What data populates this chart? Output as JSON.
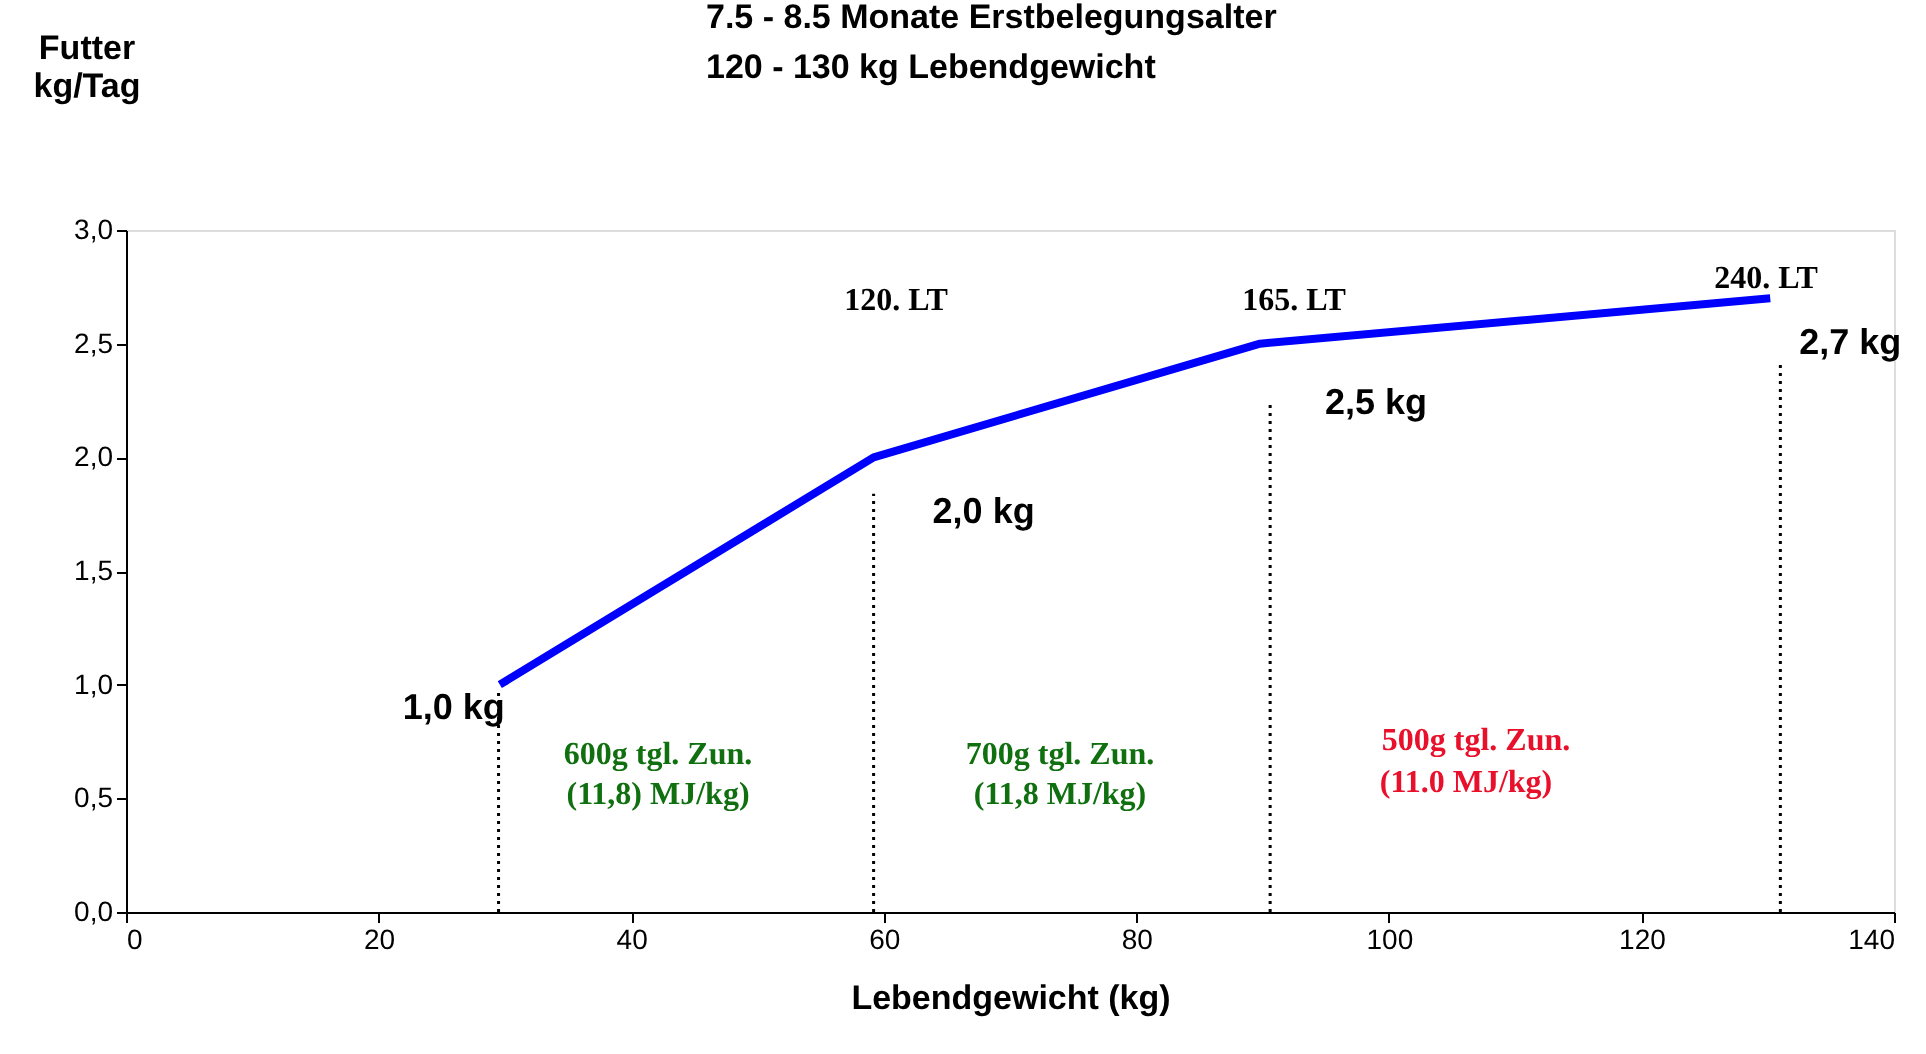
{
  "chart_data": {
    "type": "line",
    "title": [
      "7.5 - 8.5 Monate Erstbelegungsalter",
      "120 - 130 kg Lebendgewicht"
    ],
    "xlabel": "Lebendgewicht (kg)",
    "ylabel": [
      "Futter",
      "kg/Tag"
    ],
    "xlim": [
      0,
      140
    ],
    "xticks": [
      0,
      20,
      40,
      60,
      80,
      100,
      120,
      140
    ],
    "ylim": [
      0,
      3
    ],
    "yticks": [
      {
        "value": 0,
        "label": "0,0"
      },
      {
        "value": 0.5,
        "label": "0,5"
      },
      {
        "value": 1,
        "label": "1,0"
      },
      {
        "value": 1.5,
        "label": "1,5"
      },
      {
        "value": 2,
        "label": "2,0"
      },
      {
        "value": 2.5,
        "label": "2,5"
      },
      {
        "value": 3,
        "label": "3,0"
      }
    ],
    "grid": false,
    "marker": "none",
    "series": [
      {
        "color": "#0000ff",
        "line_style": "solid",
        "x": [
          29.6,
          59.2,
          89.8,
          130.2
        ],
        "values": [
          1.0,
          2.0,
          2.5,
          2.7
        ],
        "value_labels": [
          "1,0 kg",
          "2,0 kg",
          "2,5 kg",
          "2,7 kg"
        ]
      },
      {
        "color": "#000000",
        "line_style": "dotted",
        "x": [
          29.5,
          29.5
        ],
        "values": [
          0,
          0.98
        ]
      },
      {
        "color": "#000000",
        "line_style": "dotted",
        "x": [
          59.2,
          59.2
        ],
        "values": [
          0,
          1.84
        ]
      },
      {
        "color": "#000000",
        "line_style": "dotted",
        "x": [
          90.6,
          90.6
        ],
        "values": [
          0,
          2.25
        ]
      },
      {
        "color": "#000000",
        "line_style": "dotted",
        "x": [
          131,
          131
        ],
        "values": [
          0,
          2.41
        ]
      }
    ],
    "annotations": [
      "120. LT",
      "165. LT",
      "240. LT",
      "600g tgl. Zun.",
      "(11,8) MJ/kg)",
      "700g tgl. Zun.",
      "(11,8 MJ/kg)",
      "500g tgl. Zun.",
      "(11.0 MJ/kg)"
    ]
  }
}
